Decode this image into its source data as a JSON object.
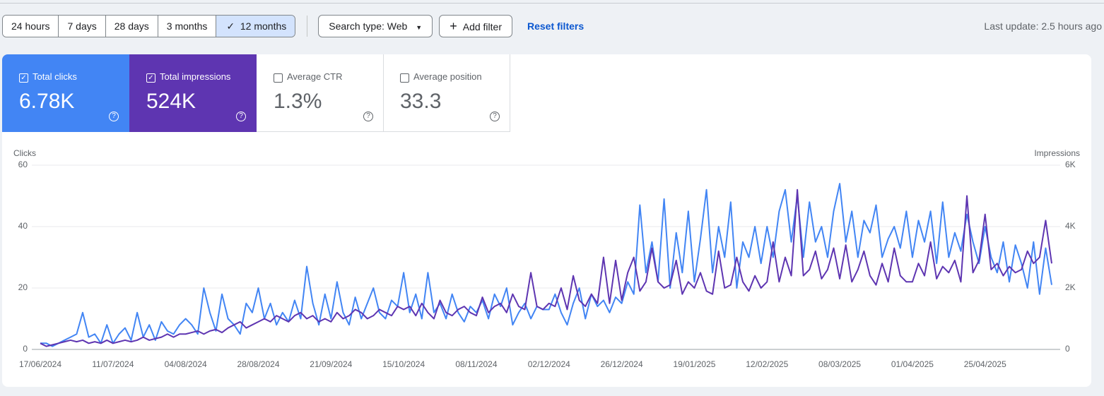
{
  "toolbar": {
    "date_ranges": [
      "24 hours",
      "7 days",
      "28 days",
      "3 months",
      "12 months"
    ],
    "search_type": "Search type: Web",
    "add_filter": "Add filter",
    "reset_filters": "Reset filters",
    "last_update": "Last update: 2.5 hours ago"
  },
  "metrics": [
    {
      "label": "Total clicks",
      "value": "6.78K"
    },
    {
      "label": "Total impressions",
      "value": "524K"
    },
    {
      "label": "Average CTR",
      "value": "1.3%"
    },
    {
      "label": "Average position",
      "value": "33.3"
    }
  ],
  "chart_data": {
    "type": "line",
    "y_label": "Clicks",
    "y2_label": "Impressions",
    "categories": [
      "17/06/2024",
      null,
      null,
      null,
      null,
      null,
      null,
      null,
      null,
      null,
      null,
      null,
      "11/07/2024",
      null,
      null,
      null,
      null,
      null,
      null,
      null,
      null,
      null,
      null,
      null,
      "04/08/2024",
      null,
      null,
      null,
      null,
      null,
      null,
      null,
      null,
      null,
      null,
      null,
      "28/08/2024",
      null,
      null,
      null,
      null,
      null,
      null,
      null,
      null,
      null,
      null,
      null,
      "21/09/2024",
      null,
      null,
      null,
      null,
      null,
      null,
      null,
      null,
      null,
      null,
      null,
      "15/10/2024",
      null,
      null,
      null,
      null,
      null,
      null,
      null,
      null,
      null,
      null,
      null,
      "08/11/2024",
      null,
      null,
      null,
      null,
      null,
      null,
      null,
      null,
      null,
      null,
      null,
      "02/12/2024",
      null,
      null,
      null,
      null,
      null,
      null,
      null,
      null,
      null,
      null,
      null,
      "26/12/2024",
      null,
      null,
      null,
      null,
      null,
      null,
      null,
      null,
      null,
      null,
      null,
      "19/01/2025",
      null,
      null,
      null,
      null,
      null,
      null,
      null,
      null,
      null,
      null,
      null,
      "12/02/2025",
      null,
      null,
      null,
      null,
      null,
      null,
      null,
      null,
      null,
      null,
      null,
      "08/03/2025",
      null,
      null,
      null,
      null,
      null,
      null,
      null,
      null,
      null,
      null,
      null,
      "01/04/2025",
      null,
      null,
      null,
      null,
      null,
      null,
      null,
      null,
      null,
      null,
      null,
      "25/04/2025",
      null,
      null,
      null,
      null,
      null,
      null,
      null,
      null,
      null,
      null,
      null
    ],
    "series": [
      {
        "color": "#4285f4",
        "values": [
          2,
          2,
          1,
          2,
          3,
          4,
          5,
          12,
          4,
          5,
          2,
          8,
          2,
          5,
          7,
          3,
          12,
          4,
          8,
          3,
          9,
          6,
          5,
          8,
          10,
          8,
          5,
          20,
          12,
          6,
          18,
          10,
          8,
          5,
          15,
          12,
          20,
          10,
          15,
          8,
          12,
          9,
          16,
          10,
          27,
          15,
          8,
          18,
          10,
          22,
          12,
          8,
          17,
          10,
          15,
          20,
          12,
          10,
          16,
          14,
          25,
          12,
          18,
          10,
          25,
          12,
          15,
          10,
          18,
          12,
          9,
          14,
          12,
          16,
          10,
          18,
          14,
          20,
          8,
          12,
          15,
          10,
          14,
          13,
          13,
          18,
          12,
          8,
          15,
          20,
          10,
          18,
          14,
          16,
          12,
          17,
          15,
          22,
          18,
          47,
          25,
          35,
          22,
          49,
          20,
          38,
          25,
          45,
          22,
          36,
          52,
          25,
          40,
          30,
          48,
          20,
          35,
          30,
          40,
          28,
          40,
          30,
          45,
          52,
          35,
          50,
          30,
          48,
          35,
          40,
          30,
          45,
          54,
          35,
          45,
          30,
          42,
          38,
          47,
          30,
          36,
          40,
          33,
          45,
          30,
          42,
          35,
          45,
          28,
          48,
          30,
          38,
          32,
          44,
          35,
          28,
          40,
          30,
          25,
          35,
          22,
          34,
          28,
          20,
          35,
          18,
          33,
          21
        ]
      },
      {
        "color": "#5e35b1",
        "axis": "y2",
        "values": [
          200,
          100,
          150,
          200,
          250,
          300,
          250,
          300,
          200,
          250,
          200,
          300,
          200,
          250,
          300,
          250,
          300,
          400,
          300,
          350,
          400,
          500,
          400,
          500,
          500,
          550,
          600,
          500,
          600,
          650,
          550,
          700,
          800,
          900,
          700,
          800,
          900,
          1000,
          900,
          1100,
          1000,
          900,
          1100,
          1200,
          1000,
          1100,
          900,
          1000,
          900,
          1200,
          1000,
          1100,
          1300,
          1200,
          1000,
          1100,
          1300,
          1200,
          1100,
          1400,
          1300,
          1400,
          1100,
          1500,
          1200,
          1000,
          1600,
          1200,
          1100,
          1300,
          1400,
          1200,
          1100,
          1700,
          1200,
          1400,
          1500,
          1200,
          1800,
          1400,
          1300,
          2500,
          1400,
          1300,
          1500,
          1400,
          2000,
          1300,
          2400,
          1600,
          1400,
          1800,
          1500,
          3000,
          1500,
          2900,
          1600,
          2500,
          3000,
          1900,
          2200,
          3300,
          2200,
          2000,
          2100,
          2900,
          1800,
          2200,
          2000,
          2500,
          1900,
          1800,
          3200,
          2000,
          2100,
          3000,
          2200,
          1900,
          2400,
          2000,
          2200,
          3500,
          2200,
          3000,
          2400,
          5200,
          2400,
          2600,
          3200,
          2300,
          2600,
          3300,
          2300,
          3400,
          2200,
          2600,
          3200,
          2400,
          2100,
          2800,
          2200,
          3300,
          2400,
          2200,
          2200,
          2800,
          2400,
          3500,
          2300,
          2700,
          2500,
          2900,
          2200,
          5000,
          2500,
          2900,
          4400,
          2600,
          2800,
          2400,
          2700,
          2500,
          2600,
          3200,
          2800,
          3000,
          4200,
          2800
        ]
      }
    ],
    "ylim": [
      0,
      60
    ],
    "yticks": [
      0,
      20,
      40,
      60
    ],
    "y2lim": [
      0,
      6000
    ],
    "y2ticks": [
      0,
      {
        "value": 2000,
        "label": "2K"
      },
      {
        "value": 4000,
        "label": "4K"
      },
      {
        "value": 6000,
        "label": "6K"
      }
    ],
    "grid": true
  }
}
